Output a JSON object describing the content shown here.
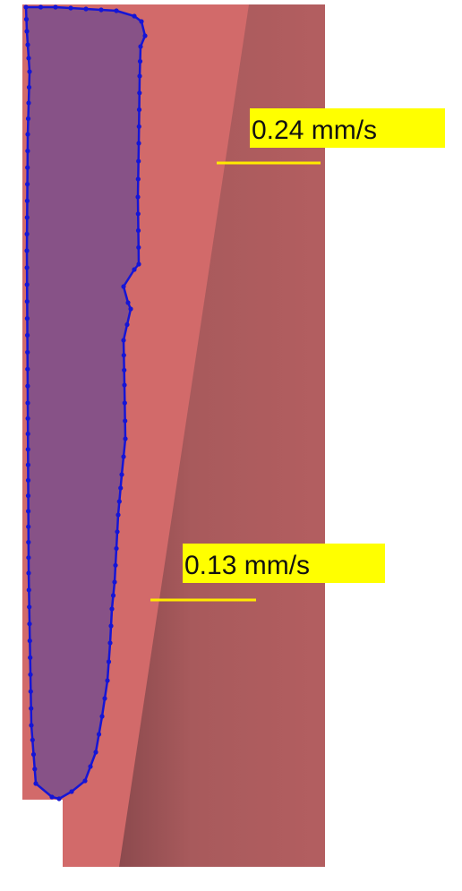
{
  "annotations": {
    "upper": {
      "label": "0.24 mm/s"
    },
    "lower": {
      "label": "0.13 mm/s"
    }
  },
  "colors": {
    "background": "#ffffff",
    "region_light": "#d26a6a",
    "region_dark_start": "#8c4a4e",
    "region_dark_end": "#b35e60",
    "outline_stroke": "#1515d6",
    "outline_fill": "#7a4d8c",
    "label_highlight": "#ffff00",
    "marker_line": "#ffea00"
  }
}
